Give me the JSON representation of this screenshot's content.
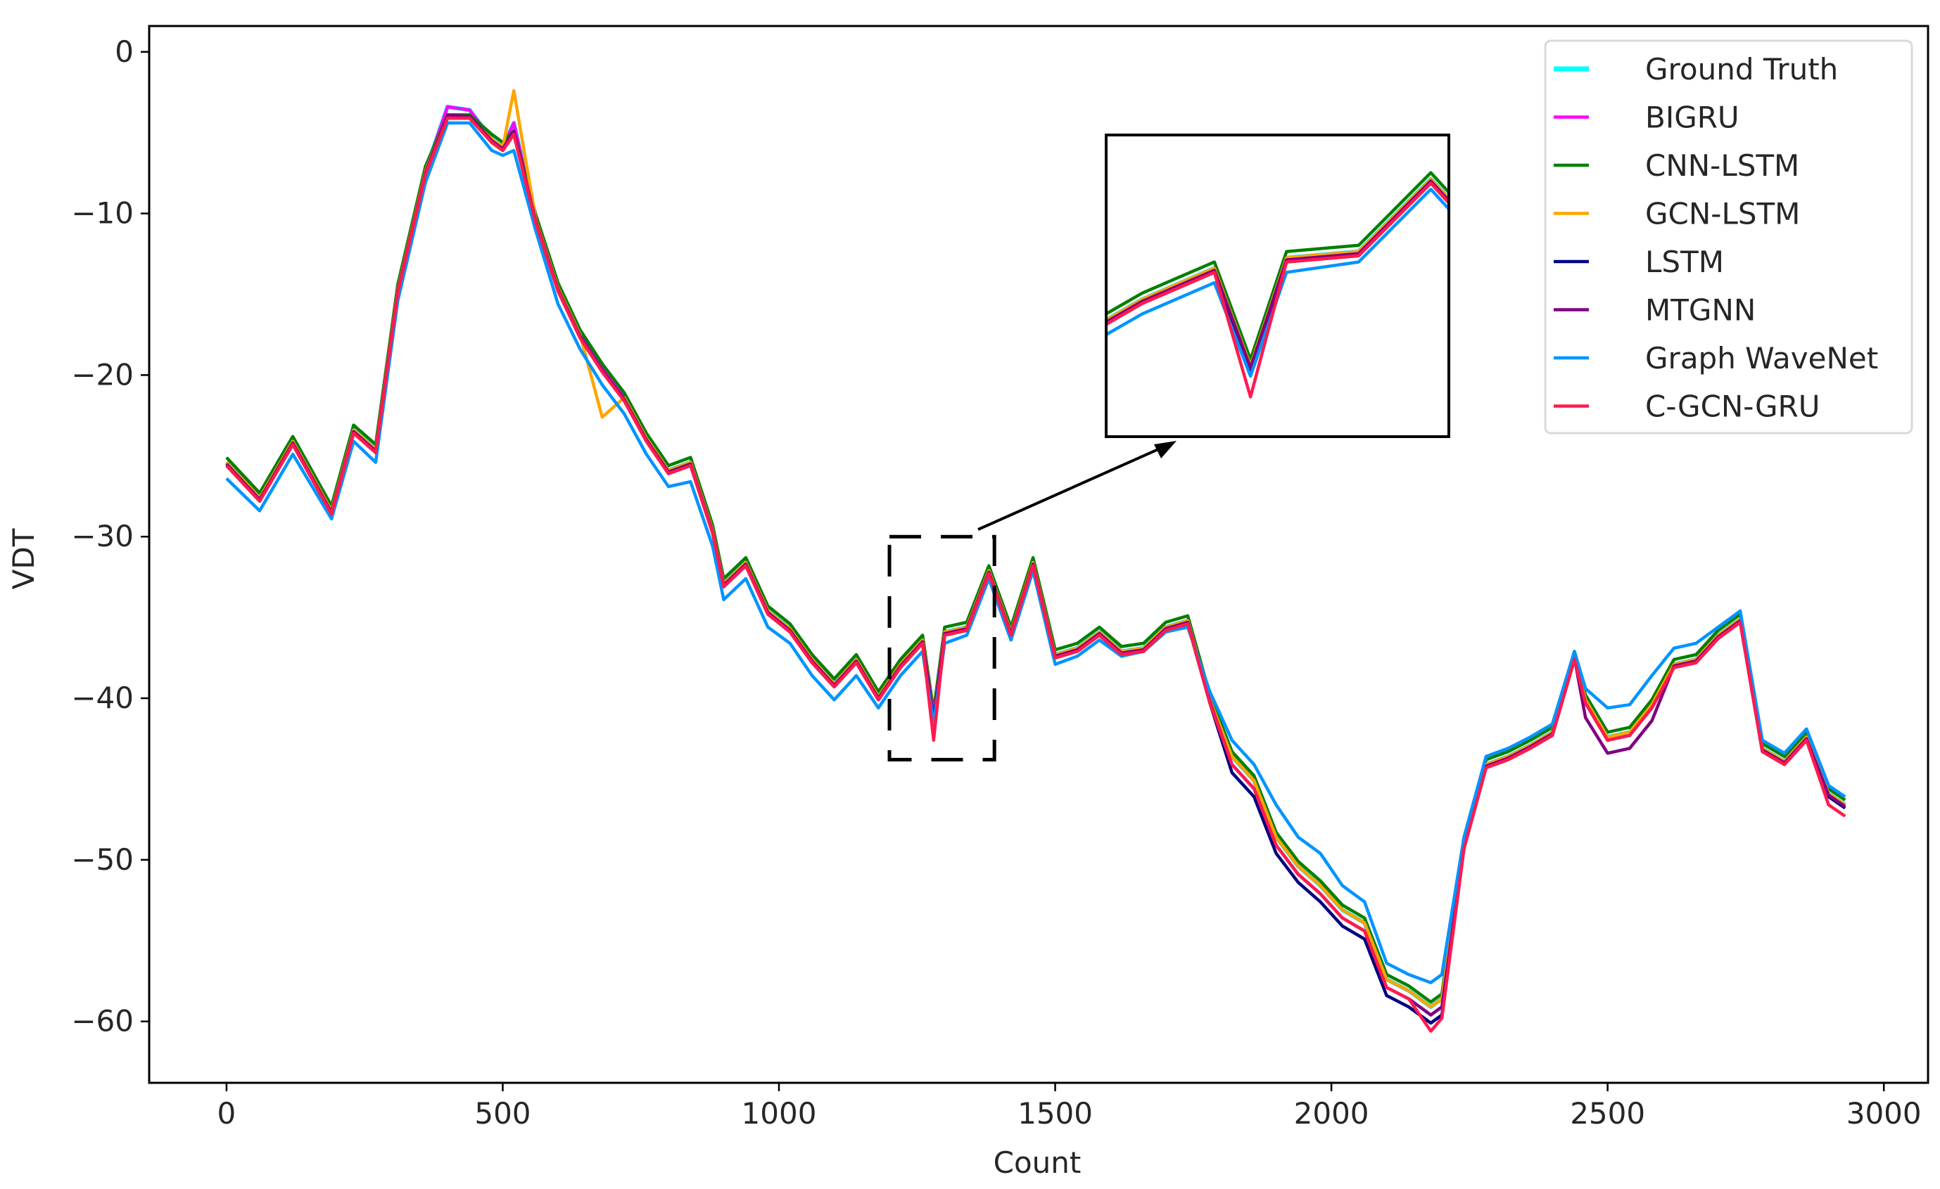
{
  "chart_data": {
    "type": "line",
    "title": "",
    "xlabel": "Count",
    "ylabel": "VDT",
    "xlim": [
      -140,
      3080
    ],
    "ylim": [
      -63.8,
      1.6
    ],
    "xticks": [
      0,
      500,
      1000,
      1500,
      2000,
      2500,
      3000
    ],
    "yticks": [
      0,
      -10,
      -20,
      -30,
      -40,
      -50,
      -60
    ],
    "xtick_labels": [
      "0",
      "500",
      "1000",
      "1500",
      "2000",
      "2500",
      "3000"
    ],
    "ytick_labels": [
      "0",
      "−10",
      "−20",
      "−30",
      "−40",
      "−50",
      "−60"
    ],
    "grid": false,
    "legend_position": "top-right",
    "x": [
      0,
      60,
      120,
      190,
      230,
      270,
      310,
      360,
      400,
      440,
      480,
      500,
      520,
      560,
      600,
      640,
      680,
      720,
      760,
      800,
      840,
      880,
      900,
      940,
      980,
      1020,
      1060,
      1100,
      1140,
      1180,
      1220,
      1260,
      1280,
      1300,
      1340,
      1380,
      1420,
      1460,
      1500,
      1540,
      1580,
      1620,
      1660,
      1700,
      1740,
      1780,
      1820,
      1860,
      1900,
      1940,
      1980,
      2020,
      2060,
      2100,
      2140,
      2180,
      2200,
      2240,
      2280,
      2320,
      2360,
      2400,
      2440,
      2460,
      2500,
      2540,
      2580,
      2620,
      2660,
      2700,
      2740,
      2780,
      2820,
      2860,
      2900,
      2930
    ],
    "series": [
      {
        "name": "Ground Truth",
        "values": [
          -25.4,
          -27.6,
          -24.1,
          -28.4,
          -23.4,
          -24.6,
          -14.7,
          -7.4,
          -3.4,
          -3.6,
          -5.4,
          -5.9,
          -4.4,
          -10.4,
          -14.6,
          -17.5,
          -19.6,
          -21.4,
          -23.9,
          -25.9,
          -25.4,
          -29.6,
          -32.9,
          -31.6,
          -34.6,
          -35.7,
          -37.6,
          -39.1,
          -37.6,
          -39.9,
          -37.9,
          -36.4,
          -41.1,
          -35.9,
          -35.6,
          -32.1,
          -35.9,
          -31.6,
          -37.3,
          -36.9,
          -35.9,
          -37.1,
          -36.9,
          -35.6,
          -35.2,
          -40.1,
          -43.6,
          -45.1,
          -48.6,
          -50.4,
          -51.6,
          -53.1,
          -53.9,
          -57.4,
          -58.1,
          -59.1,
          -58.6,
          -49.1,
          -44.1,
          -43.6,
          -42.9,
          -42.1,
          -37.4,
          -40.1,
          -42.4,
          -42.1,
          -40.4,
          -37.9,
          -37.6,
          -36.1,
          -35.1,
          -43.1,
          -43.9,
          -42.4,
          -45.9,
          -46.6
        ]
      },
      {
        "name": "BIGRU",
        "values": [
          -25.4,
          -27.6,
          -24.1,
          -28.4,
          -23.4,
          -24.6,
          -14.7,
          -7.4,
          -3.4,
          -3.6,
          -5.4,
          -5.9,
          -4.4,
          -10.4,
          -14.6,
          -17.5,
          -19.6,
          -21.4,
          -23.9,
          -25.9,
          -25.4,
          -29.6,
          -32.9,
          -31.6,
          -34.6,
          -35.7,
          -37.6,
          -39.1,
          -37.6,
          -39.9,
          -37.9,
          -36.4,
          -41.1,
          -35.9,
          -35.6,
          -32.1,
          -35.9,
          -31.6,
          -37.3,
          -36.9,
          -35.9,
          -37.1,
          -36.9,
          -35.6,
          -35.2,
          -40.1,
          -43.6,
          -45.1,
          -48.6,
          -50.4,
          -51.6,
          -53.1,
          -53.9,
          -57.4,
          -58.1,
          -59.1,
          -58.6,
          -49.1,
          -44.1,
          -43.6,
          -42.9,
          -42.1,
          -37.4,
          -40.1,
          -42.4,
          -42.1,
          -40.4,
          -37.9,
          -37.6,
          -36.1,
          -35.1,
          -43.1,
          -43.9,
          -42.4,
          -45.9,
          -46.6
        ]
      },
      {
        "name": "CNN-LSTM",
        "values": [
          -25.1,
          -27.3,
          -23.8,
          -28.1,
          -23.1,
          -24.3,
          -14.4,
          -7.1,
          -3.9,
          -3.9,
          -5.1,
          -5.6,
          -4.9,
          -10.1,
          -14.3,
          -17.2,
          -19.3,
          -21.1,
          -23.6,
          -25.6,
          -25.1,
          -29.3,
          -32.6,
          -31.3,
          -34.3,
          -35.4,
          -37.3,
          -38.8,
          -37.3,
          -39.6,
          -37.6,
          -36.1,
          -40.8,
          -35.6,
          -35.3,
          -31.8,
          -35.6,
          -31.3,
          -37.0,
          -36.6,
          -35.6,
          -36.8,
          -36.6,
          -35.3,
          -34.9,
          -39.8,
          -43.3,
          -44.8,
          -48.3,
          -50.1,
          -51.3,
          -52.8,
          -53.6,
          -57.1,
          -57.8,
          -58.8,
          -58.3,
          -48.8,
          -43.8,
          -43.3,
          -42.6,
          -41.8,
          -37.1,
          -39.8,
          -42.1,
          -41.8,
          -40.1,
          -37.6,
          -37.3,
          -35.8,
          -34.8,
          -42.8,
          -43.6,
          -42.1,
          -45.6,
          -46.3
        ]
      },
      {
        "name": "GCN-LSTM",
        "values": [
          -25.4,
          -27.6,
          -24.1,
          -28.4,
          -23.4,
          -24.6,
          -14.7,
          -7.4,
          -3.9,
          -4.1,
          -5.4,
          -5.9,
          -2.4,
          -10.4,
          -14.6,
          -17.5,
          -22.6,
          -21.4,
          -23.9,
          -25.9,
          -25.4,
          -29.6,
          -32.9,
          -31.6,
          -34.6,
          -35.7,
          -37.6,
          -39.1,
          -37.6,
          -39.9,
          -37.9,
          -36.4,
          -41.1,
          -35.9,
          -35.6,
          -32.1,
          -35.9,
          -31.6,
          -37.3,
          -36.9,
          -35.9,
          -37.1,
          -36.9,
          -35.6,
          -35.2,
          -40.1,
          -43.6,
          -45.1,
          -48.6,
          -50.4,
          -51.6,
          -53.1,
          -53.9,
          -57.4,
          -58.1,
          -59.1,
          -58.6,
          -49.1,
          -44.1,
          -43.6,
          -42.9,
          -42.1,
          -37.4,
          -40.1,
          -42.4,
          -42.1,
          -40.4,
          -37.9,
          -37.6,
          -36.1,
          -35.1,
          -43.1,
          -43.9,
          -42.4,
          -45.9,
          -46.6
        ]
      },
      {
        "name": "LSTM",
        "values": [
          -25.6,
          -27.8,
          -24.3,
          -28.6,
          -23.6,
          -24.8,
          -14.9,
          -7.6,
          -4.1,
          -4.1,
          -5.6,
          -6.1,
          -5.1,
          -10.6,
          -14.8,
          -17.7,
          -19.8,
          -21.6,
          -24.1,
          -26.1,
          -25.6,
          -29.8,
          -33.1,
          -31.8,
          -34.8,
          -35.9,
          -37.8,
          -39.3,
          -37.8,
          -40.1,
          -38.1,
          -36.6,
          -41.3,
          -36.1,
          -35.8,
          -32.3,
          -36.1,
          -31.8,
          -37.5,
          -37.1,
          -36.1,
          -37.3,
          -37.1,
          -35.8,
          -35.4,
          -40.3,
          -44.6,
          -46.1,
          -49.6,
          -51.4,
          -52.6,
          -54.1,
          -54.9,
          -58.4,
          -59.1,
          -60.1,
          -59.6,
          -49.3,
          -44.3,
          -43.8,
          -43.1,
          -42.3,
          -37.6,
          -40.3,
          -42.6,
          -42.3,
          -40.6,
          -38.1,
          -37.8,
          -36.3,
          -35.3,
          -43.3,
          -44.1,
          -42.6,
          -46.1,
          -46.8
        ]
      },
      {
        "name": "MTGNN",
        "values": [
          -25.5,
          -27.7,
          -24.2,
          -28.5,
          -23.5,
          -24.7,
          -14.8,
          -7.5,
          -3.9,
          -4.0,
          -5.5,
          -6.0,
          -4.9,
          -10.5,
          -14.7,
          -17.6,
          -19.7,
          -21.5,
          -24.0,
          -26.0,
          -25.5,
          -29.7,
          -33.0,
          -31.7,
          -34.7,
          -35.8,
          -37.7,
          -39.2,
          -37.7,
          -40.0,
          -38.0,
          -36.5,
          -41.2,
          -36.0,
          -35.7,
          -32.2,
          -36.0,
          -31.7,
          -37.4,
          -37.0,
          -36.0,
          -37.2,
          -37.0,
          -35.7,
          -35.3,
          -40.2,
          -44.1,
          -45.6,
          -49.1,
          -50.9,
          -52.1,
          -53.6,
          -54.4,
          -57.9,
          -58.6,
          -59.6,
          -59.1,
          -49.2,
          -44.2,
          -43.7,
          -43.0,
          -42.2,
          -37.5,
          -41.2,
          -43.4,
          -43.1,
          -41.4,
          -38.0,
          -37.7,
          -36.2,
          -35.2,
          -43.2,
          -44.0,
          -42.5,
          -46.0,
          -46.7
        ]
      },
      {
        "name": "Graph WaveNet",
        "values": [
          -26.4,
          -28.4,
          -24.9,
          -28.9,
          -24.1,
          -25.4,
          -15.4,
          -8.1,
          -4.4,
          -4.4,
          -6.1,
          -6.4,
          -6.1,
          -11.1,
          -15.6,
          -18.4,
          -20.6,
          -22.4,
          -24.9,
          -26.9,
          -26.6,
          -30.6,
          -33.9,
          -32.6,
          -35.6,
          -36.6,
          -38.6,
          -40.1,
          -38.6,
          -40.6,
          -38.6,
          -37.1,
          -41.6,
          -36.6,
          -36.1,
          -32.6,
          -36.4,
          -32.1,
          -37.9,
          -37.4,
          -36.4,
          -37.4,
          -37.1,
          -35.9,
          -35.6,
          -39.6,
          -42.6,
          -44.1,
          -46.6,
          -48.6,
          -49.6,
          -51.6,
          -52.6,
          -56.4,
          -57.1,
          -57.6,
          -57.1,
          -48.6,
          -43.6,
          -43.1,
          -42.4,
          -41.6,
          -37.1,
          -39.4,
          -40.6,
          -40.4,
          -38.6,
          -36.9,
          -36.6,
          -35.6,
          -34.6,
          -42.6,
          -43.4,
          -41.9,
          -45.4,
          -46.1
        ]
      },
      {
        "name": "C-GCN-GRU",
        "values": [
          -25.6,
          -27.8,
          -24.3,
          -28.6,
          -23.6,
          -24.8,
          -14.9,
          -7.6,
          -4.1,
          -4.1,
          -5.6,
          -6.1,
          -5.1,
          -10.6,
          -14.8,
          -17.7,
          -19.8,
          -21.6,
          -24.1,
          -26.1,
          -25.6,
          -29.8,
          -33.1,
          -31.8,
          -34.8,
          -35.9,
          -37.8,
          -39.3,
          -37.8,
          -40.1,
          -38.1,
          -36.6,
          -42.6,
          -36.1,
          -35.8,
          -32.3,
          -36.1,
          -31.8,
          -37.5,
          -37.1,
          -36.1,
          -37.3,
          -37.1,
          -35.8,
          -35.4,
          -40.3,
          -44.1,
          -45.6,
          -49.1,
          -50.9,
          -52.1,
          -53.6,
          -54.4,
          -57.9,
          -58.6,
          -60.6,
          -59.8,
          -49.3,
          -44.3,
          -43.8,
          -43.1,
          -42.3,
          -37.6,
          -40.3,
          -42.6,
          -42.3,
          -40.6,
          -38.1,
          -37.8,
          -36.3,
          -35.3,
          -43.3,
          -44.1,
          -42.6,
          -46.6,
          -47.3
        ]
      }
    ],
    "colors": [
      "#00ffff",
      "#ff00ff",
      "#008000",
      "#ffa500",
      "#000080",
      "#800080",
      "#0094ff",
      "#ff1a4f"
    ],
    "zoom_box": {
      "x_range": [
        1200,
        1390
      ],
      "y_range": [
        -43.8,
        -30.0
      ]
    }
  }
}
